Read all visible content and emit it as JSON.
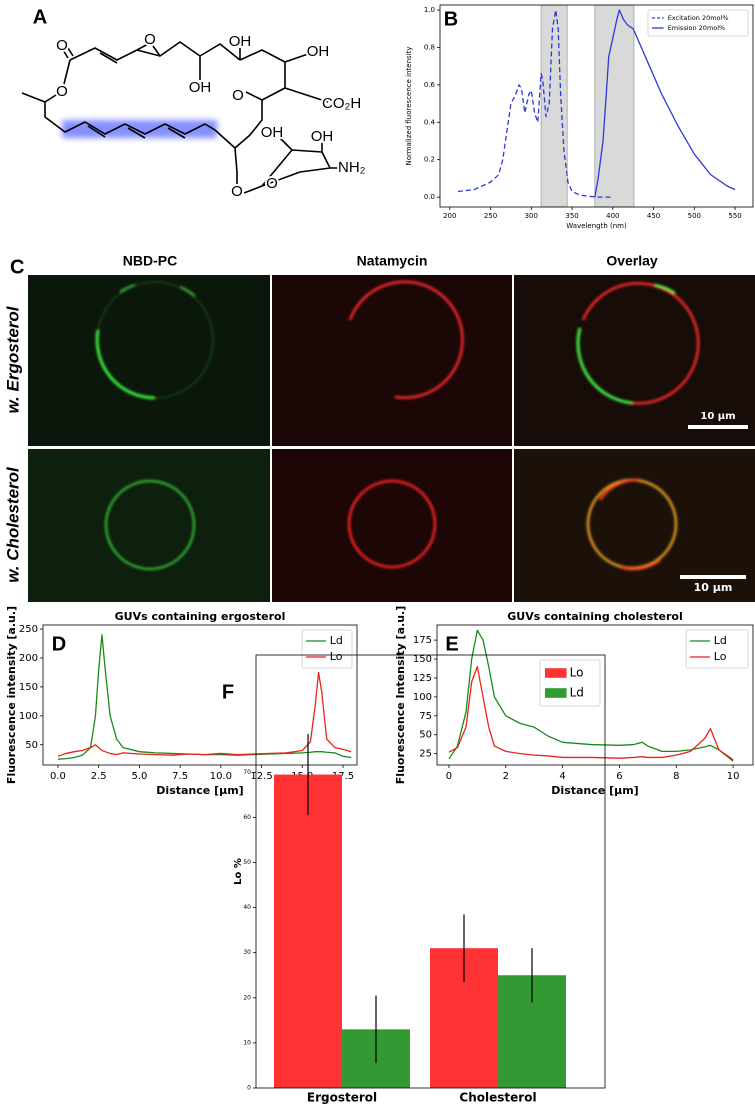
{
  "panel_a": {
    "label": "A",
    "atoms": [
      "O",
      "O",
      "O",
      "OH",
      "OH",
      "OH",
      "O",
      "CO₂H",
      "OH",
      "OH",
      "NH₂",
      "O",
      "O"
    ]
  },
  "panel_c": {
    "label": "C",
    "columns": [
      "NBD-PC",
      "Natamycin",
      "Overlay"
    ],
    "rows": [
      "w. Ergosterol",
      "w. Cholesterol"
    ],
    "scale_bars": [
      "10 µm",
      "10 µm"
    ]
  },
  "chart_data": [
    {
      "type": "line",
      "label": "B",
      "xlabel": "Wavelength (nm)",
      "ylabel": "Normalized fluorescence intensity",
      "xlim": [
        188,
        572
      ],
      "ylim": [
        -0.053,
        1.027
      ],
      "xticks": [
        200,
        250,
        300,
        350,
        400,
        450,
        500,
        550
      ],
      "yticks": [
        {
          "value": 0,
          "label": "0.0"
        },
        0.2,
        0.4,
        0.6,
        0.8,
        {
          "value": 1,
          "label": "1.0"
        }
      ],
      "grid": false,
      "legend": "upper right",
      "shaded": [
        [
          312,
          344
        ],
        [
          378,
          426
        ]
      ],
      "shade_color": "#d9d9d9",
      "series": [
        {
          "name": "Excitation 20mol%",
          "color": "#2b3bd6",
          "dashed": true,
          "x": [
            210,
            230,
            240,
            250,
            260,
            265,
            270,
            275,
            280,
            285,
            288,
            292,
            297,
            300,
            304,
            308,
            312,
            314,
            318,
            322,
            326,
            330,
            333,
            336,
            340,
            345,
            350,
            360,
            380,
            400
          ],
          "values": [
            0.03,
            0.04,
            0.06,
            0.08,
            0.12,
            0.2,
            0.35,
            0.5,
            0.54,
            0.6,
            0.58,
            0.45,
            0.55,
            0.57,
            0.45,
            0.4,
            0.66,
            0.63,
            0.43,
            0.5,
            0.9,
            1.0,
            0.9,
            0.55,
            0.25,
            0.08,
            0.03,
            0.01,
            0.0,
            0.0
          ]
        },
        {
          "name": "Emission 20mol%",
          "color": "#2b3bd6",
          "dashed": false,
          "x": [
            378,
            382,
            388,
            392,
            395,
            400,
            405,
            408,
            413,
            418,
            425,
            440,
            460,
            480,
            500,
            520,
            540,
            550
          ],
          "values": [
            0.0,
            0.1,
            0.3,
            0.55,
            0.75,
            0.85,
            0.95,
            1.0,
            0.95,
            0.92,
            0.9,
            0.75,
            0.55,
            0.38,
            0.23,
            0.12,
            0.06,
            0.04
          ]
        }
      ]
    },
    {
      "type": "line",
      "label": "D",
      "title": "GUVs containing ergosterol",
      "xlabel": "Distance [µm]",
      "ylabel": "Fluorescence intensity [a.u.]",
      "xlim": [
        -0.92,
        18.36
      ],
      "ylim": [
        15,
        257
      ],
      "xticks": [
        {
          "value": 0,
          "label": "0.0"
        },
        2.5,
        {
          "value": 5,
          "label": "5.0"
        },
        7.5,
        {
          "value": 10,
          "label": "10.0"
        },
        12.5,
        {
          "value": 15,
          "label": "15.0"
        },
        17.5
      ],
      "yticks": [
        50,
        100,
        150,
        200,
        250
      ],
      "grid": false,
      "legend": "upper right",
      "x": [
        0,
        0.5,
        1,
        1.5,
        2,
        2.3,
        2.5,
        2.7,
        2.9,
        3.2,
        3.6,
        4,
        5,
        6,
        7,
        8,
        9,
        10,
        11,
        12,
        13,
        14,
        15,
        15.5,
        15.8,
        16,
        16.2,
        16.5,
        17,
        17.5,
        18
      ],
      "series": [
        {
          "name": "Ld",
          "color": "#1a8a1a",
          "values": [
            25,
            26,
            28,
            32,
            45,
            100,
            180,
            240,
            180,
            100,
            60,
            45,
            38,
            36,
            35,
            34,
            33,
            33,
            32,
            33,
            34,
            35,
            36,
            37,
            38,
            38,
            38,
            37,
            36,
            30,
            28
          ]
        },
        {
          "name": "Lo",
          "color": "#e8231a",
          "values": [
            30,
            35,
            38,
            40,
            45,
            50,
            45,
            40,
            38,
            35,
            33,
            36,
            34,
            33,
            32,
            34,
            33,
            35,
            33,
            34,
            35,
            36,
            40,
            55,
            120,
            175,
            140,
            60,
            45,
            42,
            38
          ]
        }
      ]
    },
    {
      "type": "line",
      "label": "E",
      "title": "GUVs containing cholesterol",
      "xlabel": "Distance [µm]",
      "ylabel": "Fluorescence Intensity [a.u.]",
      "xlim": [
        -0.42,
        10.7
      ],
      "ylim": [
        10,
        195
      ],
      "xticks": [
        0,
        2,
        4,
        6,
        8,
        10
      ],
      "yticks": [
        25,
        50,
        75,
        100,
        125,
        150,
        175
      ],
      "grid": false,
      "legend": "upper right",
      "x": [
        0,
        0.3,
        0.6,
        0.8,
        1,
        1.2,
        1.4,
        1.6,
        2,
        2.5,
        3,
        3.5,
        4,
        5,
        6,
        6.5,
        6.8,
        7,
        7.5,
        8,
        8.5,
        9,
        9.2,
        9.5,
        10
      ],
      "series": [
        {
          "name": "Ld",
          "color": "#1a8a1a",
          "values": [
            18,
            35,
            80,
            150,
            188,
            175,
            140,
            100,
            75,
            65,
            60,
            48,
            40,
            37,
            36,
            37,
            40,
            35,
            28,
            28,
            30,
            34,
            36,
            30,
            15
          ]
        },
        {
          "name": "Lo",
          "color": "#e8231a",
          "values": [
            27,
            33,
            60,
            120,
            140,
            100,
            60,
            35,
            28,
            25,
            23,
            22,
            20,
            20,
            19,
            20,
            21,
            20,
            20,
            23,
            28,
            45,
            58,
            30,
            17
          ]
        }
      ]
    },
    {
      "type": "bar",
      "label": "F",
      "ylabel": "Lo %",
      "ylim": [
        0,
        96
      ],
      "yticks": [
        0,
        10,
        20,
        30,
        40,
        50,
        60,
        70
      ],
      "grid": false,
      "legend": "upper right",
      "categories": [
        "Ergosterol",
        "Cholesterol"
      ],
      "series": [
        {
          "name": "Lo",
          "color": "#ff3333",
          "values": [
            69.5,
            31
          ],
          "errors": [
            9,
            7.5
          ]
        },
        {
          "name": "Ld",
          "color": "#339933",
          "values": [
            13,
            25
          ],
          "errors": [
            7.5,
            6
          ]
        }
      ]
    }
  ]
}
